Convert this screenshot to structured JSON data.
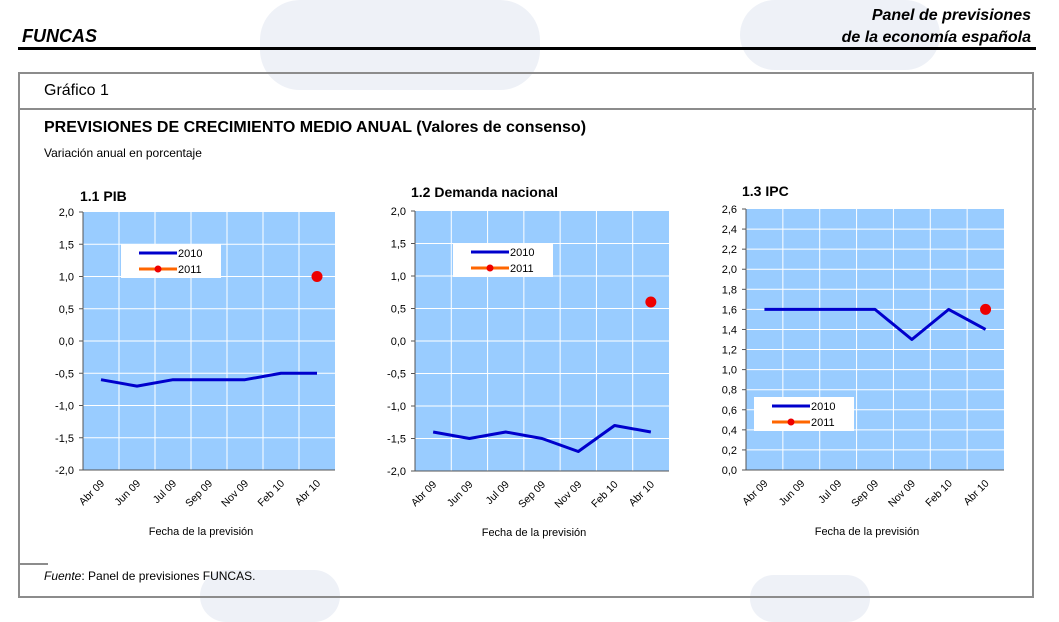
{
  "header": {
    "left": "FUNCAS",
    "right_line1": "Panel de previsiones",
    "right_line2": "de la economía española"
  },
  "figure": {
    "label": "Gráfico 1",
    "title": "PREVISIONES DE CRECIMIENTO MEDIO ANUAL (Valores de consenso)",
    "subtitle": "Variación anual en porcentaje"
  },
  "source": {
    "label": "Fuente",
    "text": ": Panel de previsiones FUNCAS."
  },
  "colors": {
    "plot_bg": "#99ccff",
    "line_2010": "#0000cc",
    "line_2011": "#ff6600",
    "dot_2011": "#ee0000"
  },
  "chart_data": [
    {
      "type": "line",
      "title": "1.1 PIB",
      "xlabel": "Fecha de la previsión",
      "categories": [
        "Abr 09",
        "Jun 09",
        "Jul 09",
        "Sep 09",
        "Nov 09",
        "Feb 10",
        "Abr 10"
      ],
      "ylim": [
        -2.0,
        2.0
      ],
      "yticks": [
        "2,0",
        "1,5",
        "1,0",
        "0,5",
        "0,0",
        "-0,5",
        "-1,0",
        "-1,5",
        "-2,0"
      ],
      "grid": true,
      "legend_position": "top-left",
      "series": [
        {
          "name": "2010",
          "values": [
            -0.6,
            -0.7,
            -0.6,
            -0.6,
            -0.6,
            -0.5,
            -0.5
          ]
        },
        {
          "name": "2011",
          "values": [
            null,
            null,
            null,
            null,
            null,
            null,
            1.0
          ]
        }
      ]
    },
    {
      "type": "line",
      "title": "1.2 Demanda nacional",
      "xlabel": "Fecha de la previsión",
      "categories": [
        "Abr 09",
        "Jun 09",
        "Jul 09",
        "Sep 09",
        "Nov 09",
        "Feb 10",
        "Abr 10"
      ],
      "ylim": [
        -2.0,
        2.0
      ],
      "yticks": [
        "2,0",
        "1,5",
        "1,0",
        "0,5",
        "0,0",
        "-0,5",
        "-1,0",
        "-1,5",
        "-2,0"
      ],
      "grid": true,
      "legend_position": "top-left",
      "series": [
        {
          "name": "2010",
          "values": [
            -1.4,
            -1.5,
            -1.4,
            -1.5,
            -1.7,
            -1.3,
            -1.4
          ]
        },
        {
          "name": "2011",
          "values": [
            null,
            null,
            null,
            null,
            null,
            null,
            0.6
          ]
        }
      ]
    },
    {
      "type": "line",
      "title": "1.3 IPC",
      "xlabel": "Fecha de la previsión",
      "categories": [
        "Abr 09",
        "Jun 09",
        "Jul 09",
        "Sep 09",
        "Nov 09",
        "Feb 10",
        "Abr 10"
      ],
      "ylim": [
        0.0,
        2.6
      ],
      "yticks": [
        "2,6",
        "2,4",
        "2,2",
        "2,0",
        "1,8",
        "1,6",
        "1,4",
        "1,2",
        "1,0",
        "0,8",
        "0,6",
        "0,4",
        "0,2",
        "0,0"
      ],
      "grid": true,
      "legend_position": "bottom-left",
      "series": [
        {
          "name": "2010",
          "values": [
            1.6,
            1.6,
            1.6,
            1.6,
            1.3,
            1.6,
            1.4
          ]
        },
        {
          "name": "2011",
          "values": [
            null,
            null,
            null,
            null,
            null,
            null,
            1.6
          ]
        }
      ]
    }
  ]
}
